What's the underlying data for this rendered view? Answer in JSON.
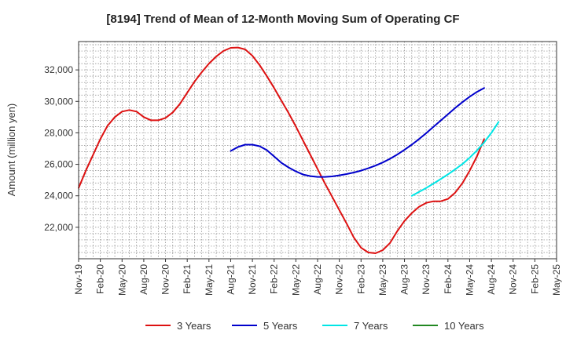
{
  "chart_data": {
    "type": "line",
    "title": "[8194]  Trend of Mean of 12-Month Moving Sum of Operating CF",
    "xlabel": "",
    "ylabel": "Amount (million yen)",
    "ylim": [
      20000,
      33800
    ],
    "yticks": [
      22000,
      24000,
      26000,
      28000,
      30000,
      32000
    ],
    "ytick_labels": [
      "22,000",
      "24,000",
      "26,000",
      "28,000",
      "30,000",
      "32,000"
    ],
    "x_categories": [
      "Nov-19",
      "Feb-20",
      "May-20",
      "Aug-20",
      "Nov-20",
      "Feb-21",
      "May-21",
      "Aug-21",
      "Nov-21",
      "Feb-22",
      "May-22",
      "Aug-22",
      "Nov-22",
      "Feb-23",
      "May-23",
      "Aug-23",
      "Nov-23",
      "Feb-24",
      "May-24",
      "Aug-24",
      "Nov-24",
      "Feb-25",
      "May-25"
    ],
    "grid": true,
    "legend_position": "bottom",
    "series": [
      {
        "name": "3 Years",
        "color": "#dd1111",
        "start_index": 0,
        "values": [
          24500,
          25600,
          26600,
          27600,
          28450,
          29000,
          29350,
          29450,
          29350,
          29000,
          28800,
          28800,
          28950,
          29300,
          29850,
          30550,
          31250,
          31850,
          32400,
          32850,
          33200,
          33400,
          33420,
          33300,
          32900,
          32300,
          31600,
          30850,
          30050,
          29250,
          28400,
          27500,
          26600,
          25700,
          24800,
          23950,
          23100,
          22250,
          21350,
          20700,
          20400,
          20350,
          20550,
          21000,
          21750,
          22400,
          22900,
          23300,
          23550,
          23650,
          23650,
          23800,
          24200,
          24800,
          25600,
          26500,
          27600
        ]
      },
      {
        "name": "5 Years",
        "color": "#0000cc",
        "start_index": 21,
        "values": [
          26850,
          27100,
          27250,
          27250,
          27150,
          26900,
          26500,
          26100,
          25800,
          25550,
          25350,
          25250,
          25200,
          25200,
          25230,
          25300,
          25380,
          25480,
          25600,
          25750,
          25920,
          26120,
          26350,
          26620,
          26920,
          27250,
          27600,
          27980,
          28380,
          28780,
          29180,
          29580,
          29950,
          30300,
          30600,
          30850
        ]
      },
      {
        "name": "7 Years",
        "color": "#00e5e5",
        "start_index": 46,
        "values": [
          24000,
          24250,
          24500,
          24780,
          25060,
          25360,
          25680,
          26020,
          26420,
          26880,
          27400,
          28000,
          28700
        ]
      },
      {
        "name": "10 Years",
        "color": "#228822",
        "start_index": 0,
        "values": []
      }
    ]
  }
}
